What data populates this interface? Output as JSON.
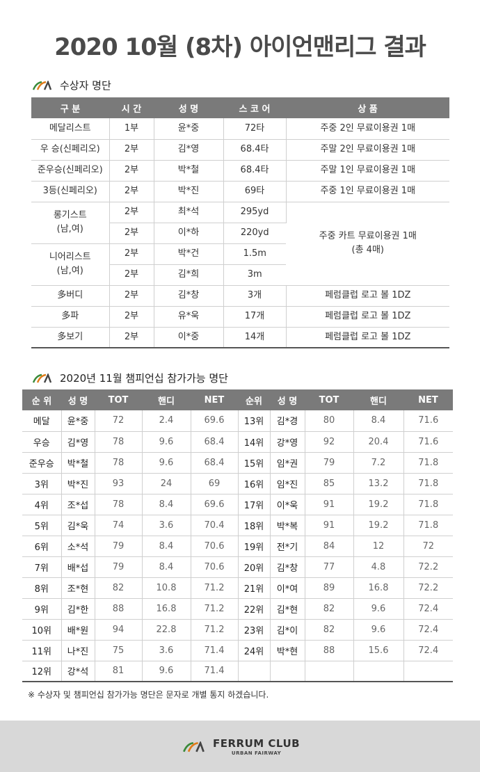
{
  "page": {
    "title": "2020 10월 (8차) 아이언맨리그 결과"
  },
  "colors": {
    "header_bg": "#7a7a7a",
    "logo_green": "#3a8a3a",
    "logo_orange": "#e07b1a",
    "footer_bg": "#d8d8d8"
  },
  "winners": {
    "heading": "수상자 명단",
    "columns": [
      "구 분",
      "시 간",
      "성 명",
      "스 코 어",
      "상 품"
    ],
    "rows": [
      {
        "category": "메달리스트",
        "time": "1부",
        "name": "윤*중",
        "score": "72타",
        "prize": "주중 2인 무료이용권 1매"
      },
      {
        "category": "우 승(신페리오)",
        "time": "2부",
        "name": "김*영",
        "score": "68.4타",
        "prize": "주말 2인 무료이용권 1매"
      },
      {
        "category": "준우승(신페리오)",
        "time": "2부",
        "name": "박*철",
        "score": "68.4타",
        "prize": "주말 1인 무료이용권 1매"
      },
      {
        "category": "3등(신페리오)",
        "time": "2부",
        "name": "박*진",
        "score": "69타",
        "prize": "주중 1인 무료이용권 1매"
      },
      {
        "category": "롱기스트\n(남,여)",
        "time": "2부",
        "name": "최*석",
        "score": "295yd",
        "prize": "주중 카트 무료이용권 1매\n(총 4매)"
      },
      {
        "category": "",
        "time": "2부",
        "name": "이*하",
        "score": "220yd",
        "prize": ""
      },
      {
        "category": "니어리스트\n(남,여)",
        "time": "2부",
        "name": "박*건",
        "score": "1.5m",
        "prize": ""
      },
      {
        "category": "",
        "time": "2부",
        "name": "김*희",
        "score": "3m",
        "prize": ""
      },
      {
        "category": "多버디",
        "time": "2부",
        "name": "김*창",
        "score": "3개",
        "prize": "페럼클럽 로고 볼 1DZ"
      },
      {
        "category": "多파",
        "time": "2부",
        "name": "유*욱",
        "score": "17개",
        "prize": "페럼클럽 로고 볼 1DZ"
      },
      {
        "category": "多보기",
        "time": "2부",
        "name": "이*중",
        "score": "14개",
        "prize": "페럼클럽 로고 볼 1DZ"
      }
    ]
  },
  "championship": {
    "heading": "2020년 11월 챔피언십 참가가능 명단",
    "columns": [
      "순 위",
      "성 명",
      "TOT",
      "핸디",
      "NET",
      "순위",
      "성 명",
      "TOT",
      "핸디",
      "NET"
    ],
    "rows": [
      [
        "메달",
        "윤*중",
        "72",
        "2.4",
        "69.6",
        "13위",
        "김*경",
        "80",
        "8.4",
        "71.6"
      ],
      [
        "우승",
        "김*영",
        "78",
        "9.6",
        "68.4",
        "14위",
        "강*영",
        "92",
        "20.4",
        "71.6"
      ],
      [
        "준우승",
        "박*철",
        "78",
        "9.6",
        "68.4",
        "15위",
        "임*권",
        "79",
        "7.2",
        "71.8"
      ],
      [
        "3위",
        "박*진",
        "93",
        "24",
        "69",
        "16위",
        "임*진",
        "85",
        "13.2",
        "71.8"
      ],
      [
        "4위",
        "조*섭",
        "78",
        "8.4",
        "69.6",
        "17위",
        "이*욱",
        "91",
        "19.2",
        "71.8"
      ],
      [
        "5위",
        "김*욱",
        "74",
        "3.6",
        "70.4",
        "18위",
        "박*복",
        "91",
        "19.2",
        "71.8"
      ],
      [
        "6위",
        "소*석",
        "79",
        "8.4",
        "70.6",
        "19위",
        "전*기",
        "84",
        "12",
        "72"
      ],
      [
        "7위",
        "배*섭",
        "79",
        "8.4",
        "70.6",
        "20위",
        "김*창",
        "77",
        "4.8",
        "72.2"
      ],
      [
        "8위",
        "조*현",
        "82",
        "10.8",
        "71.2",
        "21위",
        "이*여",
        "89",
        "16.8",
        "72.2"
      ],
      [
        "9위",
        "김*한",
        "88",
        "16.8",
        "71.2",
        "22위",
        "김*현",
        "82",
        "9.6",
        "72.4"
      ],
      [
        "10위",
        "배*원",
        "94",
        "22.8",
        "71.2",
        "23위",
        "김*이",
        "82",
        "9.6",
        "72.4"
      ],
      [
        "11위",
        "나*진",
        "75",
        "3.6",
        "71.4",
        "24위",
        "박*현",
        "88",
        "15.6",
        "72.4"
      ],
      [
        "12위",
        "강*석",
        "81",
        "9.6",
        "71.4",
        "",
        "",
        "",
        "",
        ""
      ]
    ]
  },
  "note": "※ 수상자 및 챔피언십 참가가능 명단은 문자로 개별 통지 하겠습니다.",
  "footer": {
    "brand": "FERRUM CLUB",
    "tagline": "URBAN FAIRWAY"
  }
}
